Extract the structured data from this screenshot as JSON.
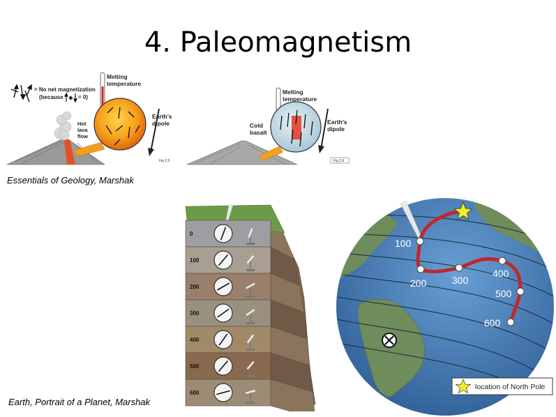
{
  "slide": {
    "title": "4. Paleomagnetism",
    "caption_top": "Essentials of Geology, Marshak",
    "caption_bottom": "Earth, Portrait of a Planet, Marshak"
  },
  "figure_left": {
    "legend_line1": "= No net magnetization",
    "legend_line2": "(because",
    "legend_eq": "= 0)",
    "melting_temperature": [
      "Melting",
      "temperature"
    ],
    "hot_lava_flow": [
      "Hot",
      "lava",
      "flow"
    ],
    "earths_dipole": [
      "Earth's",
      "dipole"
    ],
    "fig_ref": "Fig 2.5"
  },
  "figure_right": {
    "melting_temperature": [
      "Melting",
      "temperature"
    ],
    "cold_basalt": [
      "Cold",
      "basalt"
    ],
    "earths_dipole": [
      "Earth's",
      "dipole"
    ],
    "fig_ref": "Fig 2.6"
  },
  "strata": {
    "depths": [
      "0",
      "100",
      "200",
      "300",
      "400",
      "500",
      "600"
    ],
    "layer_colors": [
      "#9e9ea2",
      "#a89f92",
      "#9a7f6a",
      "#9a9080",
      "#a08a6a",
      "#8a6a4e",
      "#9c8c74"
    ],
    "needle_angles": [
      20,
      40,
      60,
      55,
      35,
      40,
      75
    ]
  },
  "globe": {
    "path_labels": [
      "100",
      "200",
      "300",
      "400",
      "500",
      "600"
    ],
    "legend_text": "location of North Pole",
    "colors": {
      "ocean": "#4a7fb8",
      "path": "#c0282a",
      "star": "#f2ee2a"
    }
  }
}
